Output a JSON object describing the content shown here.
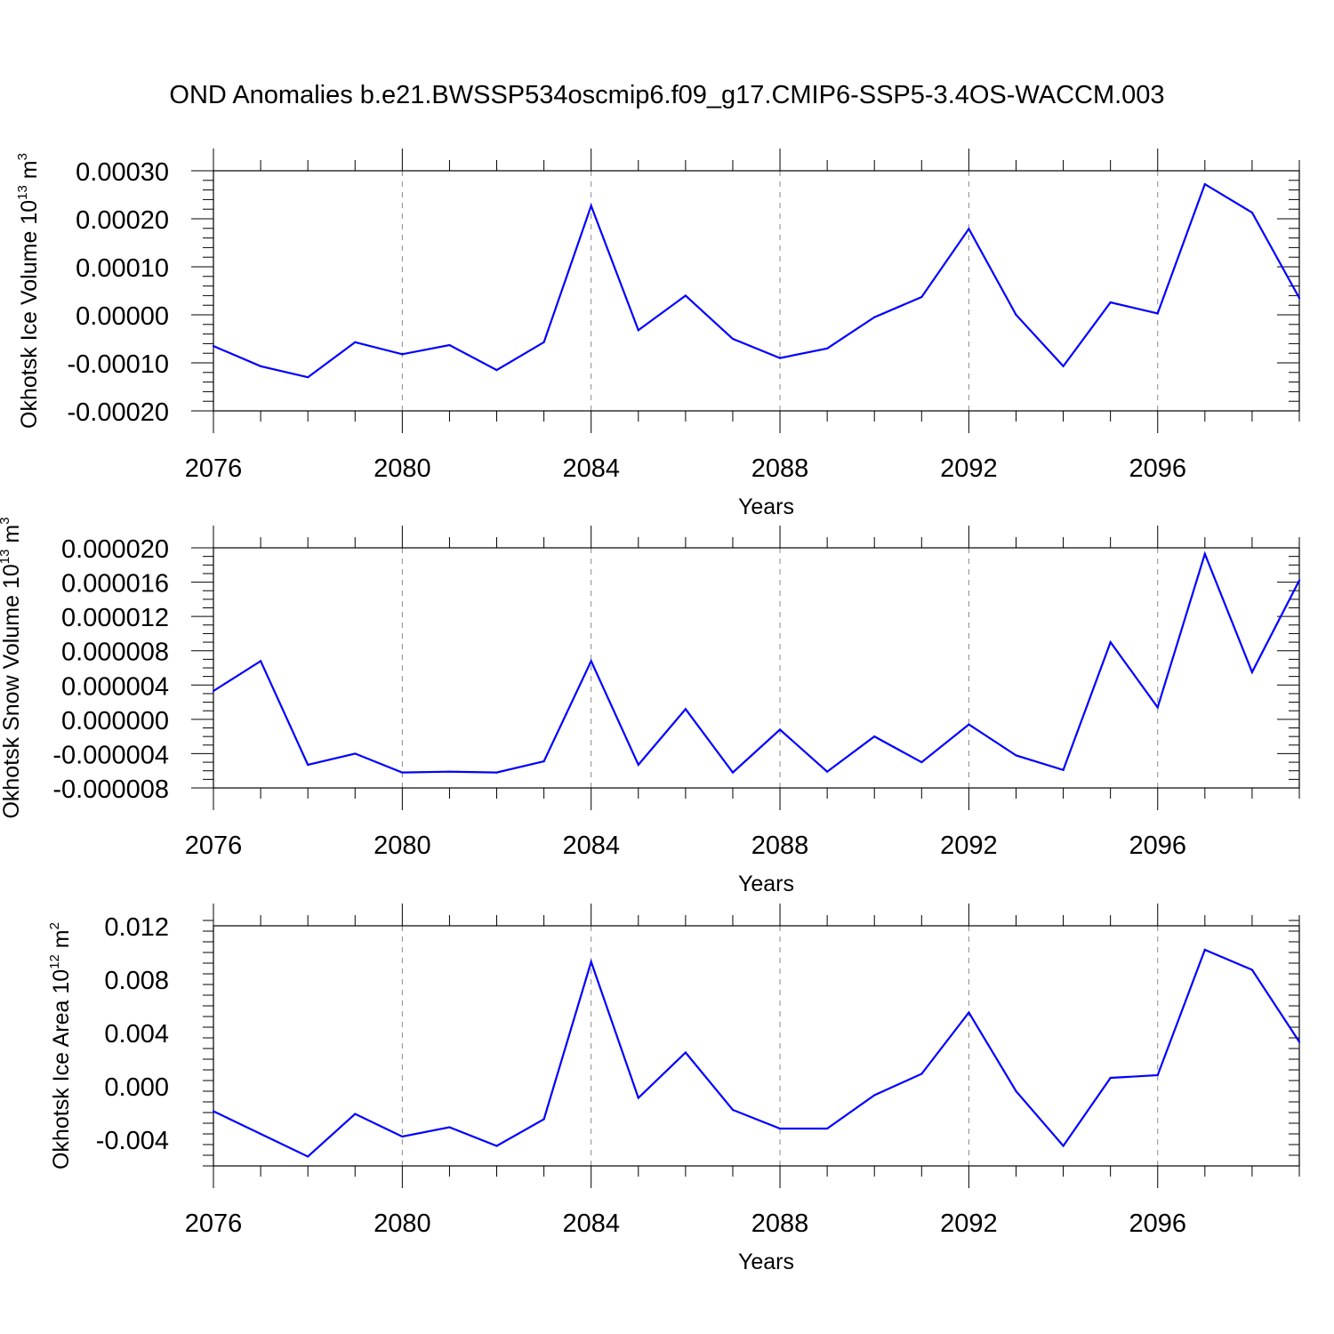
{
  "title": "OND Anomalies b.e21.BWSSP534oscmip6.f09_g17.CMIP6-SSP5-3.4OS-WACCM.003",
  "line_color": "#0000ff",
  "chart_data": [
    {
      "type": "line",
      "ylabel": "Okhotsk Ice Volume 10",
      "ylabel_sup": "13",
      "ylabel_unit": " m",
      "ylabel_unit_sup": "3",
      "xlabel": "Years",
      "xlim": [
        2076,
        2099
      ],
      "ylim": [
        -0.0002,
        0.0003
      ],
      "yticks": [
        -0.0002,
        -0.0001,
        0.0,
        0.0001,
        0.0002,
        0.0003
      ],
      "ytick_labels": [
        "-0.00020",
        "-0.00010",
        "0.00000",
        "0.00010",
        "0.00020",
        "0.00030"
      ],
      "xticks": [
        2076,
        2080,
        2084,
        2088,
        2092,
        2096
      ],
      "xtick_labels": [
        "2076",
        "2080",
        "2084",
        "2088",
        "2092",
        "2096"
      ],
      "series": [
        {
          "name": "Okhotsk Ice Volume",
          "x": [
            2076,
            2077,
            2078,
            2079,
            2080,
            2081,
            2082,
            2083,
            2084,
            2085,
            2086,
            2087,
            2088,
            2089,
            2090,
            2091,
            2092,
            2093,
            2094,
            2095,
            2096,
            2097,
            2098,
            2099
          ],
          "values": [
            -6.5e-05,
            -0.000107,
            -0.00013,
            -5.7e-05,
            -8.2e-05,
            -6.3e-05,
            -0.000115,
            -5.7e-05,
            0.000227,
            -3.2e-05,
            4e-05,
            -5e-05,
            -9e-05,
            -7e-05,
            -5e-06,
            3.7e-05,
            0.000179,
            0.0,
            -0.000107,
            2.6e-05,
            3e-06,
            0.000272,
            0.000213,
            3.5e-05
          ]
        }
      ]
    },
    {
      "type": "line",
      "ylabel": "Okhotsk Snow Volume 10",
      "ylabel_sup": "13",
      "ylabel_unit": " m",
      "ylabel_unit_sup": "3",
      "xlabel": "Years",
      "xlim": [
        2076,
        2099
      ],
      "ylim": [
        -8e-06,
        2e-05
      ],
      "yticks": [
        -8e-06,
        -4e-06,
        0.0,
        4e-06,
        8e-06,
        1.2e-05,
        1.6e-05,
        2e-05
      ],
      "ytick_labels": [
        "-0.000008",
        "-0.000004",
        "0.000000",
        "0.000004",
        "0.000008",
        "0.000012",
        "0.000016",
        "0.000020"
      ],
      "xticks": [
        2076,
        2080,
        2084,
        2088,
        2092,
        2096
      ],
      "xtick_labels": [
        "2076",
        "2080",
        "2084",
        "2088",
        "2092",
        "2096"
      ],
      "series": [
        {
          "name": "Okhotsk Snow Volume",
          "x": [
            2076,
            2077,
            2078,
            2079,
            2080,
            2081,
            2082,
            2083,
            2084,
            2085,
            2086,
            2087,
            2088,
            2089,
            2090,
            2091,
            2092,
            2093,
            2094,
            2095,
            2096,
            2097,
            2098,
            2099
          ],
          "values": [
            3.3e-06,
            6.8e-06,
            -5.3e-06,
            -4e-06,
            -6.2e-06,
            -6.1e-06,
            -6.2e-06,
            -4.9e-06,
            6.8e-06,
            -5.3e-06,
            1.2e-06,
            -6.2e-06,
            -1.2e-06,
            -6.1e-06,
            -2e-06,
            -5e-06,
            -6e-07,
            -4.2e-06,
            -5.9e-06,
            9e-06,
            1.4e-06,
            1.93e-05,
            5.5e-06,
            1.62e-05
          ]
        }
      ]
    },
    {
      "type": "line",
      "ylabel": "Okhotsk Ice Area 10",
      "ylabel_sup": "12",
      "ylabel_unit": " m",
      "ylabel_unit_sup": "2",
      "xlabel": "Years",
      "xlim": [
        2076,
        2099
      ],
      "ylim": [
        -0.006,
        0.012
      ],
      "yticks": [
        -0.004,
        0.0,
        0.004,
        0.008,
        0.012
      ],
      "ytick_labels": [
        "-0.004",
        "0.000",
        "0.004",
        "0.008",
        "0.012"
      ],
      "xticks": [
        2076,
        2080,
        2084,
        2088,
        2092,
        2096
      ],
      "xtick_labels": [
        "2076",
        "2080",
        "2084",
        "2088",
        "2092",
        "2096"
      ],
      "series": [
        {
          "name": "Okhotsk Ice Area",
          "x": [
            2076,
            2077,
            2078,
            2079,
            2080,
            2081,
            2082,
            2083,
            2084,
            2085,
            2086,
            2087,
            2088,
            2089,
            2090,
            2091,
            2092,
            2093,
            2094,
            2095,
            2096,
            2097,
            2098,
            2099
          ],
          "values": [
            -0.0019,
            -0.0036,
            -0.0053,
            -0.0021,
            -0.0038,
            -0.0031,
            -0.0045,
            -0.0025,
            0.0093,
            -0.0009,
            0.0025,
            -0.0018,
            -0.0032,
            -0.0032,
            -0.0007,
            0.0009,
            0.0055,
            -0.0004,
            -0.0045,
            0.0006,
            0.0008,
            0.0102,
            0.0087,
            0.0033
          ]
        }
      ]
    }
  ]
}
